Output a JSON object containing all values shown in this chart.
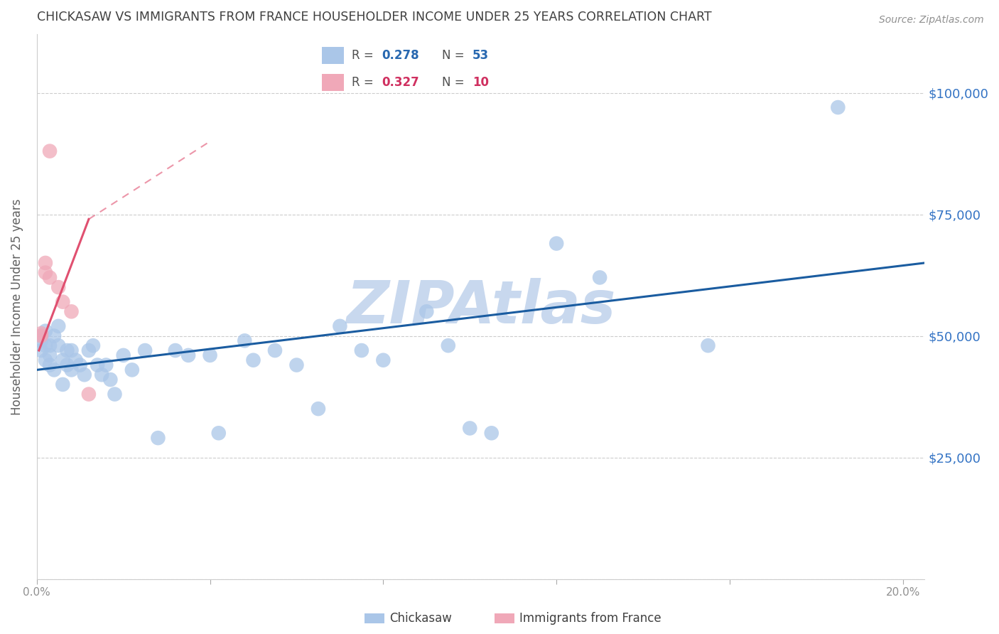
{
  "title": "CHICKASAW VS IMMIGRANTS FROM FRANCE HOUSEHOLDER INCOME UNDER 25 YEARS CORRELATION CHART",
  "source": "Source: ZipAtlas.com",
  "ylabel": "Householder Income Under 25 years",
  "xlim": [
    0.0,
    0.205
  ],
  "ylim": [
    0,
    112000
  ],
  "yticks": [
    0,
    25000,
    50000,
    75000,
    100000
  ],
  "ytick_labels": [
    "",
    "$25,000",
    "$50,000",
    "$75,000",
    "$100,000"
  ],
  "xticks": [
    0.0,
    0.04,
    0.08,
    0.12,
    0.16,
    0.2
  ],
  "xtick_labels": [
    "0.0%",
    "",
    "",
    "",
    "",
    "20.0%"
  ],
  "watermark": "ZIPAtlas",
  "blue_scatter_x": [
    0.001,
    0.001,
    0.001,
    0.002,
    0.002,
    0.002,
    0.003,
    0.003,
    0.003,
    0.004,
    0.004,
    0.005,
    0.005,
    0.006,
    0.006,
    0.007,
    0.007,
    0.008,
    0.008,
    0.009,
    0.01,
    0.011,
    0.012,
    0.013,
    0.014,
    0.015,
    0.016,
    0.017,
    0.018,
    0.02,
    0.022,
    0.025,
    0.028,
    0.032,
    0.035,
    0.04,
    0.042,
    0.048,
    0.05,
    0.055,
    0.06,
    0.065,
    0.07,
    0.075,
    0.08,
    0.09,
    0.095,
    0.1,
    0.105,
    0.12,
    0.13,
    0.155,
    0.185
  ],
  "blue_scatter_y": [
    49000,
    47000,
    50000,
    48000,
    45000,
    51000,
    48000,
    44000,
    46000,
    43000,
    50000,
    52000,
    48000,
    45000,
    40000,
    47000,
    44000,
    43000,
    47000,
    45000,
    44000,
    42000,
    47000,
    48000,
    44000,
    42000,
    44000,
    41000,
    38000,
    46000,
    43000,
    47000,
    29000,
    47000,
    46000,
    46000,
    30000,
    49000,
    45000,
    47000,
    44000,
    35000,
    52000,
    47000,
    45000,
    55000,
    48000,
    31000,
    30000,
    69000,
    62000,
    48000,
    97000
  ],
  "pink_scatter_x": [
    0.001,
    0.001,
    0.002,
    0.002,
    0.003,
    0.003,
    0.005,
    0.006,
    0.008,
    0.012
  ],
  "pink_scatter_y": [
    50000,
    50500,
    63000,
    65000,
    62000,
    88000,
    60000,
    57000,
    55000,
    38000
  ],
  "blue_trend_x": [
    0.0,
    0.205
  ],
  "blue_trend_y": [
    43000,
    65000
  ],
  "pink_trend_x": [
    0.0005,
    0.012
  ],
  "pink_trend_y": [
    47000,
    74000
  ],
  "pink_dash_trend_x": [
    0.012,
    0.04
  ],
  "pink_dash_trend_y": [
    74000,
    90000
  ],
  "scatter_blue_color": "#aac6e8",
  "scatter_pink_color": "#f0a8b8",
  "trend_blue_color": "#1a5ca0",
  "trend_pink_color": "#e05070",
  "background_color": "#ffffff",
  "grid_color": "#cccccc",
  "title_color": "#404040",
  "axis_label_color": "#606060",
  "right_tick_color": "#3373c4",
  "watermark_color": "#c8d8ee",
  "legend_r1_color": "#2868b0",
  "legend_r2_color": "#d03060",
  "bottom_legend_label1": "Chickasaw",
  "bottom_legend_label2": "Immigrants from France"
}
